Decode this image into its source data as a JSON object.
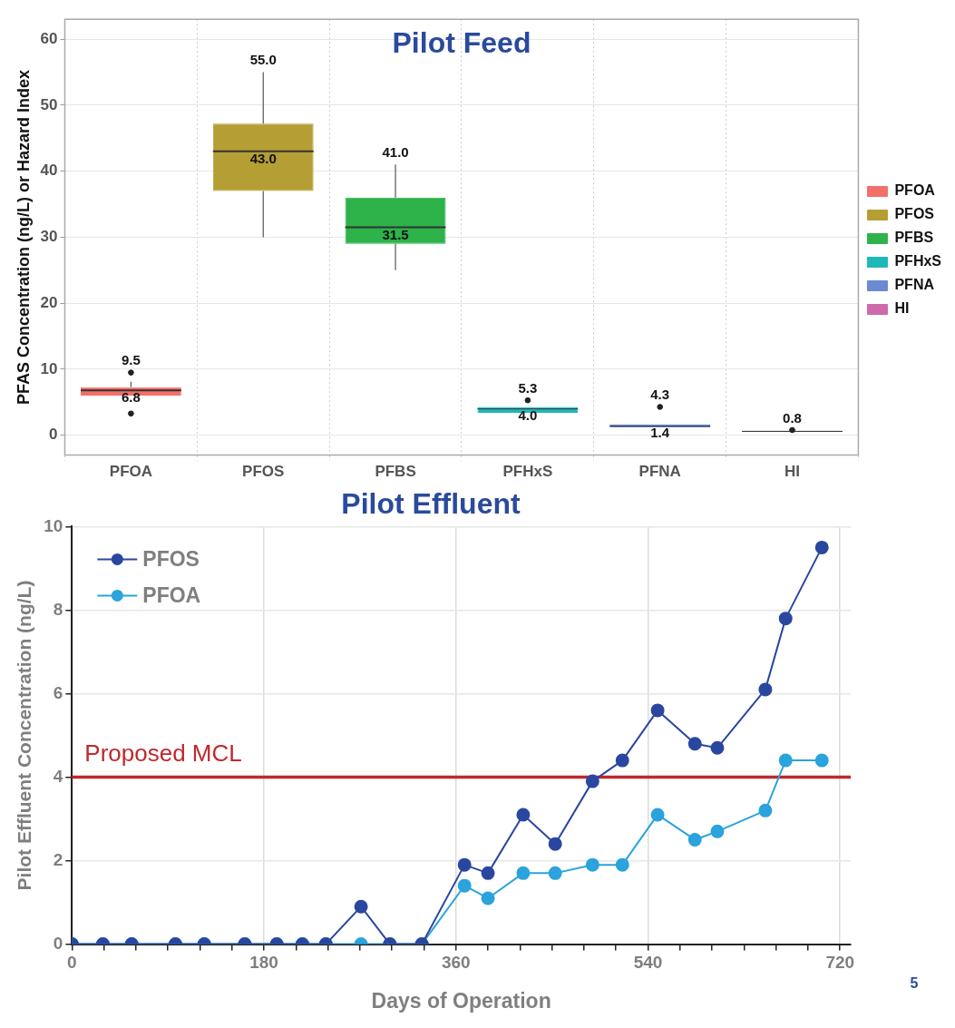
{
  "chart_data": [
    {
      "type": "box",
      "title": "Pilot Feed",
      "ylabel": "PFAS Concentration (ng/L) or Hazard Index",
      "categories": [
        "PFOA",
        "PFOS",
        "PFBS",
        "PFHxS",
        "PFNA",
        "HI"
      ],
      "series": [
        {
          "name": "PFOA",
          "color": "#f2706a",
          "boxes": [
            {
              "low": 6.0,
              "q1": 6.0,
              "median": 6.8,
              "q3": 7.3,
              "high": 8.1
            },
            null,
            null,
            null,
            null,
            null
          ]
        },
        {
          "name": "PFOS",
          "color": "#b59e34",
          "boxes": [
            null,
            {
              "low": 30,
              "q1": 37,
              "median": 43.0,
              "q3": 47.2,
              "high": 55.0
            },
            null,
            null,
            null,
            null
          ]
        },
        {
          "name": "PFBS",
          "color": "#2db34a",
          "boxes": [
            null,
            null,
            {
              "low": 25,
              "q1": 29,
              "median": 31.5,
              "q3": 36,
              "high": 41.0
            },
            null,
            null,
            null
          ]
        },
        {
          "name": "PFHxS",
          "color": "#1fb8b8",
          "boxes": [
            null,
            null,
            null,
            {
              "low": 3.4,
              "q1": 3.4,
              "median": 4.0,
              "q3": 4.3,
              "high": 4.3
            },
            null,
            null
          ]
        },
        {
          "name": "PFNA",
          "color": "#6a8bd0",
          "boxes": [
            null,
            null,
            null,
            null,
            {
              "low": 1.2,
              "q1": 1.2,
              "median": 1.4,
              "q3": 1.7,
              "high": 1.7
            },
            null
          ]
        },
        {
          "name": "HI",
          "color": "#cc6aac",
          "boxes": [
            null,
            null,
            null,
            null,
            null,
            {
              "low": 0.5,
              "q1": 0.5,
              "median": 0.6,
              "q3": 0.7,
              "high": 0.7
            }
          ]
        },
        {
          "type": "scatter",
          "color": "#222222",
          "x": [
            "PFOA",
            "PFOA",
            "PFHxS",
            "PFNA",
            "HI"
          ],
          "values": [
            9.5,
            3.3,
            5.3,
            4.3,
            0.8
          ],
          "value_labels": [
            "9.5",
            null,
            "5.3",
            "4.3",
            "0.8"
          ]
        }
      ],
      "ylim": [
        -3,
        63
      ],
      "yticks": [
        0,
        10,
        20,
        30,
        40,
        50,
        60
      ],
      "grid": true,
      "legend": "right",
      "annotations": [
        {
          "text": "6.8",
          "x": "PFOA",
          "y": 6.8
        },
        {
          "text": "55.0",
          "x": "PFOS",
          "y": 55.0
        },
        {
          "text": "43.0",
          "x": "PFOS",
          "y": 43.0
        },
        {
          "text": "41.0",
          "x": "PFBS",
          "y": 41.0
        },
        {
          "text": "31.5",
          "x": "PFBS",
          "y": 31.5
        },
        {
          "text": "4.0",
          "x": "PFHxS",
          "y": 4.0
        },
        {
          "text": "1.4",
          "x": "PFNA",
          "y": 1.4
        }
      ]
    },
    {
      "type": "line",
      "title": "Pilot Effluent",
      "xlabel": "Days of Operation",
      "ylabel": "Pilot Effluent Concentration (ng/L)",
      "x": [
        0,
        29,
        56,
        97,
        124,
        162,
        192,
        216,
        238,
        271,
        298,
        328,
        368,
        390,
        423,
        453,
        488,
        516,
        549,
        584,
        605,
        650,
        669,
        703
      ],
      "series": [
        {
          "name": "PFOS",
          "color": "#2a47a0",
          "values": [
            0,
            0,
            0,
            0,
            0,
            0,
            0,
            0,
            0,
            0.9,
            0,
            0,
            1.9,
            1.7,
            3.1,
            2.4,
            3.9,
            4.4,
            5.6,
            4.8,
            4.7,
            6.1,
            7.8,
            9.5
          ]
        },
        {
          "name": "PFOA",
          "color": "#2ba3dc",
          "values": [
            0,
            0,
            0,
            0,
            0,
            0,
            0,
            0,
            0,
            0,
            0,
            0,
            1.4,
            1.1,
            1.7,
            1.7,
            1.9,
            1.9,
            3.1,
            2.5,
            2.7,
            3.2,
            4.4,
            4.4
          ]
        }
      ],
      "xlim": [
        0,
        730
      ],
      "xticks": [
        0,
        {
          "value": 30,
          "label": null
        },
        {
          "value": 60,
          "label": null
        },
        {
          "value": 90,
          "label": null
        },
        {
          "value": 120,
          "label": null
        },
        {
          "value": 150,
          "label": null
        },
        180,
        {
          "value": 210,
          "label": null
        },
        {
          "value": 240,
          "label": null
        },
        {
          "value": 270,
          "label": null
        },
        {
          "value": 300,
          "label": null
        },
        {
          "value": 330,
          "label": null
        },
        360,
        {
          "value": 390,
          "label": null
        },
        {
          "value": 420,
          "label": null
        },
        {
          "value": 450,
          "label": null
        },
        {
          "value": 480,
          "label": null
        },
        {
          "value": 510,
          "label": null
        },
        540,
        {
          "value": 570,
          "label": null
        },
        {
          "value": 600,
          "label": null
        },
        {
          "value": 630,
          "label": null
        },
        {
          "value": 660,
          "label": null
        },
        {
          "value": 690,
          "label": null
        },
        720
      ],
      "ylim": [
        0,
        10
      ],
      "yticks": [
        0,
        2,
        4,
        6,
        8,
        10
      ],
      "grid": true,
      "legend": "top left",
      "marker": "circle",
      "line_style": "solid",
      "ref_lines": [
        {
          "axis": "y",
          "value": 4,
          "label": "Proposed MCL",
          "color": "#c0282d"
        }
      ],
      "annotations": [
        "5"
      ]
    }
  ]
}
